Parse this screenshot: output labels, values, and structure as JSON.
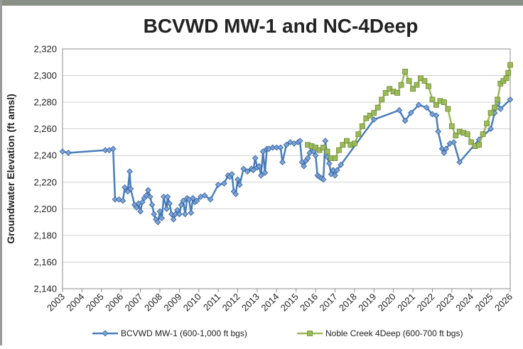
{
  "chart_data": {
    "type": "line",
    "title": "BCVWD MW-1 and NC-4Deep",
    "y_label": "Groundwater Elevation (ft amsl)",
    "xlim": [
      2003,
      2026
    ],
    "xticks": [
      2003,
      2004,
      2005,
      2006,
      2007,
      2008,
      2009,
      2010,
      2011,
      2012,
      2013,
      2014,
      2015,
      2016,
      2017,
      2018,
      2019,
      2020,
      2021,
      2022,
      2023,
      2024,
      2025,
      2026
    ],
    "ylim": [
      2140,
      2320
    ],
    "yticks": [
      {
        "value": 2140,
        "label": "2,140"
      },
      {
        "value": 2160,
        "label": "2,160"
      },
      {
        "value": 2180,
        "label": "2,180"
      },
      {
        "value": 2200,
        "label": "2,200"
      },
      {
        "value": 2220,
        "label": "2,220"
      },
      {
        "value": 2240,
        "label": "2,240"
      },
      {
        "value": 2260,
        "label": "2,260"
      },
      {
        "value": 2280,
        "label": "2,280"
      },
      {
        "value": 2300,
        "label": "2,300"
      },
      {
        "value": 2320,
        "label": "2,320"
      }
    ],
    "grid": true,
    "legend": "bottom",
    "series": [
      {
        "name": "BCVWD MW-1 (600-1,000 ft bgs)",
        "color": "#4a7ebb",
        "marker": "diamond",
        "x": [
          2003.0,
          2003.3,
          2005.2,
          2005.4,
          2005.6,
          2005.7,
          2005.9,
          2006.1,
          2006.2,
          2006.35,
          2006.45,
          2006.5,
          2006.7,
          2006.8,
          2006.9,
          2007.0,
          2007.1,
          2007.2,
          2007.3,
          2007.4,
          2007.5,
          2007.6,
          2007.7,
          2007.8,
          2007.9,
          2008.0,
          2008.1,
          2008.2,
          2008.35,
          2008.4,
          2008.5,
          2008.6,
          2008.7,
          2008.8,
          2008.9,
          2009.0,
          2009.1,
          2009.2,
          2009.3,
          2009.4,
          2009.5,
          2009.6,
          2009.7,
          2009.8,
          2009.9,
          2010.1,
          2010.3,
          2010.6,
          2011.0,
          2011.3,
          2011.5,
          2011.6,
          2011.7,
          2011.8,
          2011.9,
          2012.0,
          2012.1,
          2012.3,
          2012.5,
          2012.7,
          2012.8,
          2012.9,
          2013.0,
          2013.1,
          2013.2,
          2013.3,
          2013.4,
          2013.5,
          2013.6,
          2013.8,
          2014.0,
          2014.2,
          2014.3,
          2014.5,
          2014.7,
          2014.9,
          2015.1,
          2015.2,
          2015.3,
          2015.4,
          2015.5,
          2015.6,
          2015.7,
          2015.8,
          2015.9,
          2016.0,
          2016.1,
          2016.2,
          2016.3,
          2016.4,
          2016.5,
          2016.6,
          2016.7,
          2016.8,
          2016.9,
          2017.0,
          2017.1,
          2017.3,
          2019.0,
          2020.3,
          2020.6,
          2020.9,
          2021.3,
          2021.7,
          2022.0,
          2022.2,
          2022.3,
          2022.5,
          2022.6,
          2022.7,
          2022.9,
          2023.1,
          2023.4,
          2024.4,
          2025.0,
          2025.2,
          2025.35,
          2025.5,
          2026.0
        ],
        "values": [
          2243,
          2242,
          2244,
          2244,
          2245,
          2207,
          2207,
          2206,
          2216,
          2213,
          2228,
          2215,
          2203,
          2201,
          2204,
          2198,
          2205,
          2208,
          2210,
          2214,
          2209,
          2203,
          2196,
          2192,
          2190,
          2198,
          2193,
          2209,
          2200,
          2209,
          2204,
          2196,
          2192,
          2196,
          2199,
          2196,
          2203,
          2206,
          2196,
          2208,
          2207,
          2197,
          2208,
          2205,
          2206,
          2209,
          2210,
          2207,
          2218,
          2219,
          2225,
          2224,
          2226,
          2213,
          2211,
          2222,
          2218,
          2230,
          2228,
          2230,
          2229,
          2238,
          2231,
          2232,
          2225,
          2243,
          2227,
          2245,
          2245,
          2246,
          2246,
          2246,
          2235,
          2248,
          2250,
          2249,
          2250,
          2251,
          2235,
          2232,
          2236,
          2238,
          2242,
          2247,
          2243,
          2240,
          2225,
          2224,
          2223,
          2222,
          2251,
          2239,
          2234,
          2226,
          2229,
          2225,
          2229,
          2233,
          2267,
          2274,
          2266,
          2272,
          2278,
          2276,
          2271,
          2270,
          2258,
          2245,
          2242,
          2245,
          2249,
          2250,
          2235,
          2252,
          2260,
          2272,
          2279,
          2275,
          2282
        ]
      },
      {
        "name": "Noble Creek 4Deep (600-700 ft bgs)",
        "color": "#9bbb59",
        "marker": "square",
        "x": [
          2015.6,
          2015.8,
          2016.0,
          2016.2,
          2016.4,
          2016.6,
          2016.8,
          2017.0,
          2017.2,
          2017.4,
          2017.6,
          2017.8,
          2018.0,
          2018.2,
          2018.4,
          2018.6,
          2018.8,
          2019.0,
          2019.2,
          2019.4,
          2019.6,
          2019.8,
          2020.0,
          2020.2,
          2020.4,
          2020.6,
          2020.8,
          2021.0,
          2021.2,
          2021.4,
          2021.6,
          2021.8,
          2022.0,
          2022.2,
          2022.4,
          2022.6,
          2022.8,
          2023.0,
          2023.2,
          2023.4,
          2023.6,
          2023.8,
          2024.0,
          2024.2,
          2024.4,
          2024.6,
          2024.8,
          2025.0,
          2025.2,
          2025.35,
          2025.5,
          2025.65,
          2025.8,
          2025.9,
          2026.0
        ],
        "values": [
          2248,
          2247,
          2246,
          2244,
          2246,
          2243,
          2238,
          2238,
          2244,
          2248,
          2251,
          2248,
          2249,
          2256,
          2262,
          2268,
          2270,
          2272,
          2276,
          2282,
          2287,
          2290,
          2288,
          2287,
          2293,
          2303,
          2296,
          2290,
          2293,
          2298,
          2296,
          2292,
          2282,
          2278,
          2281,
          2280,
          2275,
          2262,
          2255,
          2258,
          2257,
          2256,
          2250,
          2247,
          2248,
          2256,
          2264,
          2272,
          2276,
          2282,
          2294,
          2296,
          2298,
          2302,
          2308
        ]
      }
    ]
  }
}
